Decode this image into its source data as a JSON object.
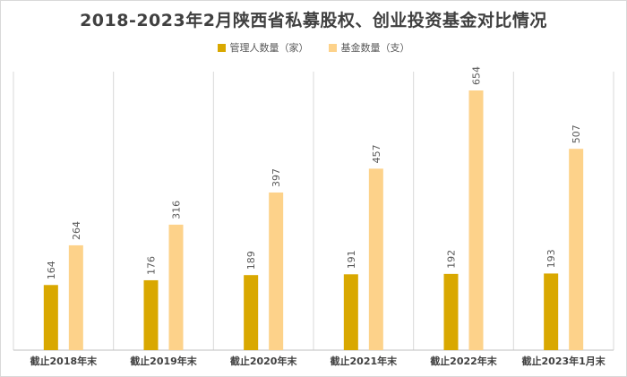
{
  "chart_data": {
    "type": "bar",
    "title": "2018-2023年2月陕西省私募股权、创业投资基金对比情况",
    "categories": [
      "截止2018年末",
      "截止2019年末",
      "截止2020年末",
      "截止2021年末",
      "截止2022年末",
      "截止2023年1月末"
    ],
    "series": [
      {
        "name": "管理人数量（家）",
        "color": "#d9a800",
        "values": [
          164,
          176,
          189,
          191,
          192,
          193
        ]
      },
      {
        "name": "基金数量（支）",
        "color": "#fdd28a",
        "values": [
          264,
          316,
          397,
          457,
          654,
          507
        ]
      }
    ],
    "ylim": [
      0,
      700
    ],
    "legend_position": "top",
    "grid": "vertical category separators"
  }
}
